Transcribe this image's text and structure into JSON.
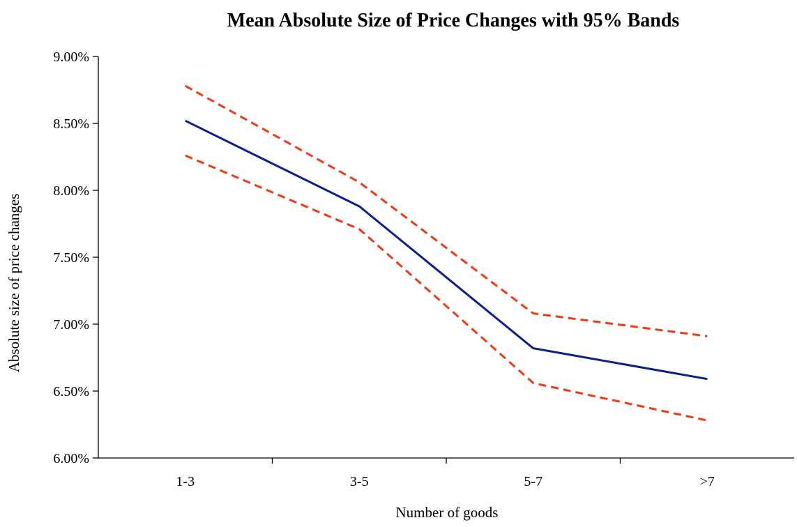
{
  "chart_data": {
    "type": "line",
    "title": "Mean Absolute Size of Price Changes with 95% Bands",
    "xlabel": "Number of goods",
    "ylabel": "Absolute size of price changes",
    "categories": [
      "1-3",
      "3-5",
      "5-7",
      ">7"
    ],
    "ylim": [
      0.06,
      0.09
    ],
    "yticks": [
      0.06,
      0.065,
      0.07,
      0.075,
      0.08,
      0.085,
      0.09
    ],
    "ytick_labels": [
      "6.00%",
      "6.50%",
      "7.00%",
      "7.50%",
      "8.00%",
      "8.50%",
      "9.00%"
    ],
    "grid": false,
    "legend": "none",
    "series": [
      {
        "values": [
          0.0852,
          0.0788,
          0.0682,
          0.0659
        ],
        "color": "#0b1e8c",
        "style": "solid"
      },
      {
        "values": [
          0.0878,
          0.0806,
          0.0708,
          0.0691
        ],
        "color": "#f03a12",
        "style": "dashed"
      },
      {
        "values": [
          0.0826,
          0.0771,
          0.0656,
          0.0628
        ],
        "color": "#f03a12",
        "style": "dashed"
      }
    ]
  }
}
